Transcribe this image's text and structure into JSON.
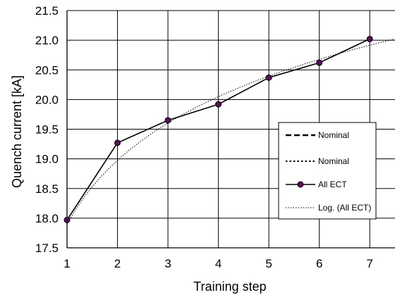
{
  "chart_data": {
    "type": "line",
    "xlabel": "Training step",
    "ylabel": "Quench current [kA]",
    "xlim": [
      1,
      7.5
    ],
    "ylim": [
      17.5,
      21.5
    ],
    "x_ticks": [
      1,
      2,
      3,
      4,
      5,
      6,
      7
    ],
    "y_ticks": [
      "17.5",
      "18.0",
      "18.5",
      "19.0",
      "19.5",
      "20.0",
      "20.5",
      "21.0",
      "21.5"
    ],
    "grid": true,
    "legend_position": "right",
    "series": [
      {
        "name": "All ECT",
        "style": "solid-with-markers",
        "marker_color": "#5a0f5a",
        "x": [
          1,
          2,
          3,
          4,
          5,
          6,
          7
        ],
        "y": [
          17.97,
          19.27,
          19.65,
          19.92,
          20.37,
          20.62,
          21.02
        ]
      },
      {
        "name": "Log. (All ECT)",
        "style": "dotted",
        "fit": "logarithmic",
        "coefficients": {
          "a": 17.9,
          "b": 1.55
        }
      }
    ],
    "legend": [
      {
        "label": "Nominal",
        "style": "long-dash"
      },
      {
        "label": "Nominal",
        "style": "short-dash"
      },
      {
        "label": "All ECT",
        "style": "solid-with-markers"
      },
      {
        "label": "Log. (All ECT)",
        "style": "dotted"
      }
    ]
  }
}
